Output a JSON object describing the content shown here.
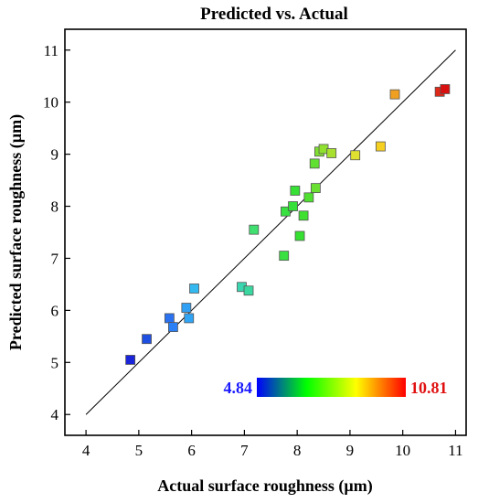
{
  "chart_data": {
    "type": "scatter",
    "title": "Predicted vs. Actual",
    "xlabel": "Actual surface roughness (µm)",
    "ylabel": "Predicted surface roughness (µm)",
    "xlim": [
      3.6,
      11.2
    ],
    "ylim": [
      3.6,
      11.4
    ],
    "xticks": [
      "4",
      "5",
      "6",
      "7",
      "8",
      "9",
      "10",
      "11"
    ],
    "yticks": [
      "4",
      "5",
      "6",
      "7",
      "8",
      "9",
      "10",
      "11"
    ],
    "grid": false,
    "reference_line": {
      "from": [
        4,
        4
      ],
      "to": [
        11,
        11
      ]
    },
    "colorbar": {
      "min_label": "4.84",
      "max_label": "10.81",
      "min_color": "#1a1aff",
      "max_color": "#e01010",
      "stops": [
        "#0000ff",
        "#00ff00",
        "#ffff00",
        "#ff0000"
      ]
    },
    "points": [
      {
        "x": 4.84,
        "y": 5.05,
        "color": "#1a24d8"
      },
      {
        "x": 5.15,
        "y": 5.45,
        "color": "#1f4fe0"
      },
      {
        "x": 5.58,
        "y": 5.85,
        "color": "#2a72f0"
      },
      {
        "x": 5.65,
        "y": 5.68,
        "color": "#2a80f4"
      },
      {
        "x": 5.9,
        "y": 6.05,
        "color": "#2fa0f4"
      },
      {
        "x": 5.95,
        "y": 5.85,
        "color": "#2fa4f4"
      },
      {
        "x": 6.05,
        "y": 6.42,
        "color": "#33b8f0"
      },
      {
        "x": 6.95,
        "y": 6.45,
        "color": "#3ad6b0"
      },
      {
        "x": 7.08,
        "y": 6.38,
        "color": "#3ad8a0"
      },
      {
        "x": 7.18,
        "y": 7.55,
        "color": "#40e070"
      },
      {
        "x": 7.75,
        "y": 7.05,
        "color": "#38e040"
      },
      {
        "x": 7.78,
        "y": 7.9,
        "color": "#38e040"
      },
      {
        "x": 7.92,
        "y": 8.0,
        "color": "#36e038"
      },
      {
        "x": 7.96,
        "y": 8.3,
        "color": "#36e034"
      },
      {
        "x": 8.05,
        "y": 7.43,
        "color": "#36e030"
      },
      {
        "x": 8.12,
        "y": 7.82,
        "color": "#40e030"
      },
      {
        "x": 8.22,
        "y": 8.17,
        "color": "#50e030"
      },
      {
        "x": 8.33,
        "y": 8.82,
        "color": "#60e030"
      },
      {
        "x": 8.35,
        "y": 8.35,
        "color": "#6ae030"
      },
      {
        "x": 8.42,
        "y": 9.05,
        "color": "#80e030"
      },
      {
        "x": 8.5,
        "y": 9.1,
        "color": "#90e030"
      },
      {
        "x": 8.65,
        "y": 9.02,
        "color": "#a8e030"
      },
      {
        "x": 9.1,
        "y": 8.98,
        "color": "#e0e030"
      },
      {
        "x": 9.58,
        "y": 9.15,
        "color": "#f5d020"
      },
      {
        "x": 9.85,
        "y": 10.15,
        "color": "#f0a020"
      },
      {
        "x": 10.7,
        "y": 10.2,
        "color": "#e02818"
      },
      {
        "x": 10.8,
        "y": 10.25,
        "color": "#d81010"
      }
    ]
  }
}
